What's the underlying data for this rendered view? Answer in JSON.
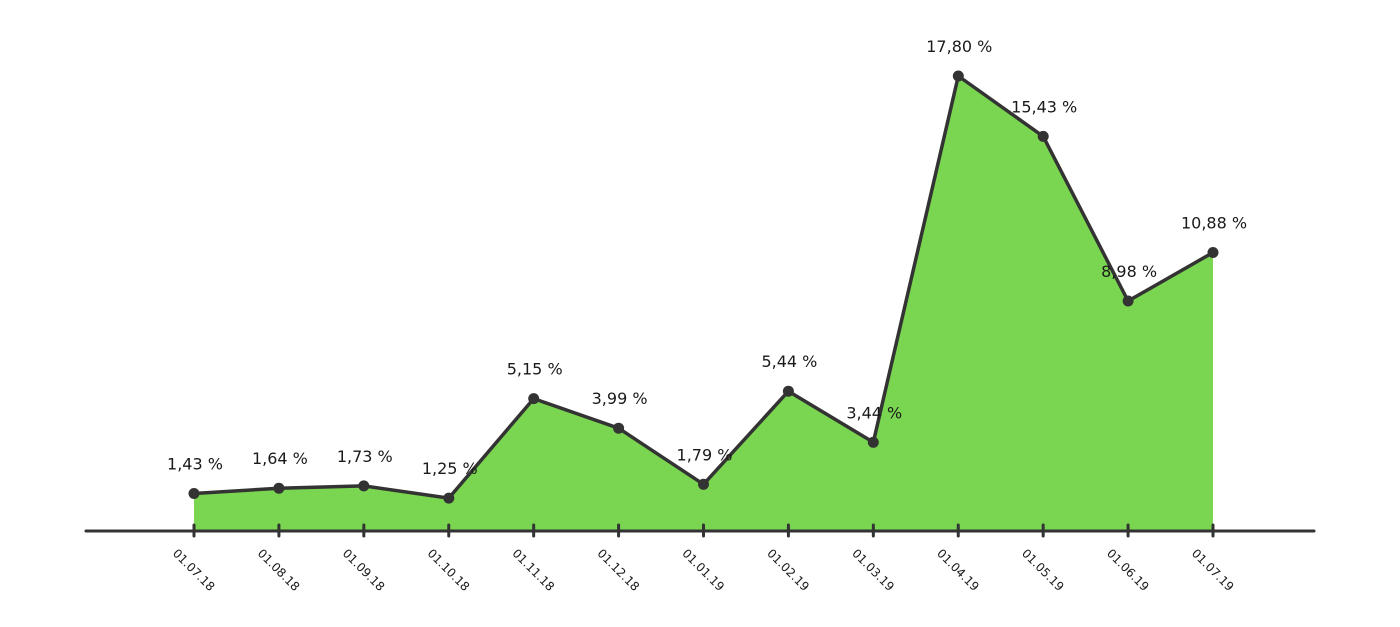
{
  "chart_data": {
    "type": "area",
    "categories": [
      "01.07.18",
      "01.08.18",
      "01.09.18",
      "01.10.18",
      "01.11.18",
      "01.12.18",
      "01.01.19",
      "01.02.19",
      "01.03.19",
      "01.04.19",
      "01.05.19",
      "01.06.19",
      "01.07.19"
    ],
    "series": [
      {
        "values": [
          1.43,
          1.64,
          1.73,
          1.25,
          5.15,
          3.99,
          1.79,
          5.44,
          3.44,
          17.8,
          15.43,
          8.98,
          10.88
        ],
        "labels": [
          "1,43 %",
          "1,64 %",
          "1,73 %",
          "1,25 %",
          "5,15 %",
          "3,99 %",
          "1,79 %",
          "5,44 %",
          "3,44 %",
          "17,80 %",
          "15,43 %",
          "8,98 %",
          "10,88 %"
        ]
      }
    ],
    "title": "",
    "xlabel": "",
    "ylabel": "",
    "ylim": [
      0,
      18
    ],
    "grid": false,
    "legend": "none",
    "colors": {
      "fill": "#7ad651",
      "line": "#333333",
      "axis": "#333333"
    }
  }
}
